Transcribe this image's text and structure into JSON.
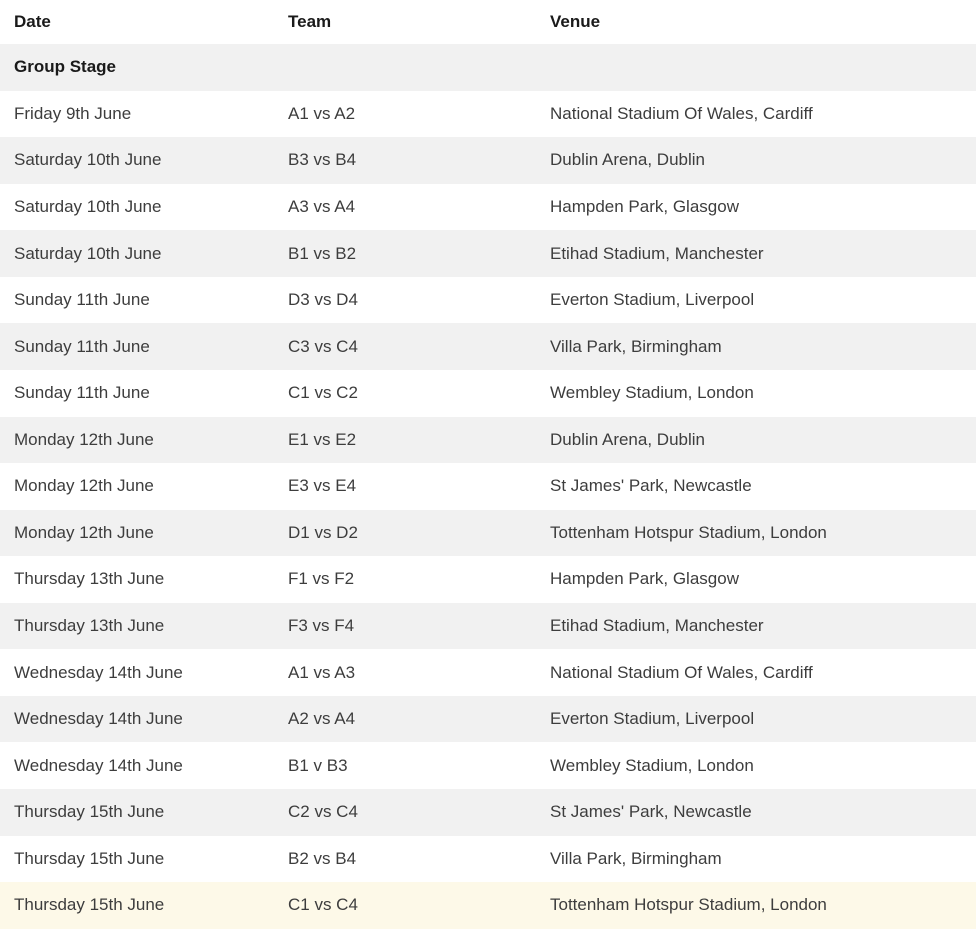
{
  "table": {
    "columns": [
      {
        "key": "date",
        "label": "Date"
      },
      {
        "key": "team",
        "label": "Team"
      },
      {
        "key": "venue",
        "label": "Venue"
      }
    ],
    "section_header": "Group Stage",
    "rows": [
      {
        "date": "Friday 9th June",
        "team": "A1 vs A2",
        "venue": "National Stadium Of Wales, Cardiff",
        "highlighted": false
      },
      {
        "date": "Saturday 10th June",
        "team": "B3 vs B4",
        "venue": "Dublin Arena, Dublin",
        "highlighted": false
      },
      {
        "date": "Saturday 10th June",
        "team": "A3 vs A4",
        "venue": "Hampden Park, Glasgow",
        "highlighted": false
      },
      {
        "date": "Saturday 10th June",
        "team": "B1 vs B2",
        "venue": "Etihad Stadium, Manchester",
        "highlighted": false
      },
      {
        "date": "Sunday 11th June",
        "team": "D3 vs D4",
        "venue": "Everton Stadium, Liverpool",
        "highlighted": false
      },
      {
        "date": "Sunday 11th June",
        "team": "C3 vs C4",
        "venue": "Villa Park, Birmingham",
        "highlighted": false
      },
      {
        "date": "Sunday 11th June",
        "team": "C1 vs C2",
        "venue": "Wembley Stadium, London",
        "highlighted": false
      },
      {
        "date": "Monday 12th June",
        "team": "E1 vs E2",
        "venue": "Dublin Arena, Dublin",
        "highlighted": false
      },
      {
        "date": "Monday 12th June",
        "team": "E3 vs E4",
        "venue": "St James' Park, Newcastle",
        "highlighted": false
      },
      {
        "date": "Monday 12th June",
        "team": "D1 vs D2",
        "venue": "Tottenham Hotspur Stadium, London",
        "highlighted": false
      },
      {
        "date": "Thursday 13th June",
        "team": "F1 vs F2",
        "venue": "Hampden Park, Glasgow",
        "highlighted": false
      },
      {
        "date": "Thursday 13th June",
        "team": "F3 vs F4",
        "venue": "Etihad Stadium, Manchester",
        "highlighted": false
      },
      {
        "date": "Wednesday 14th June",
        "team": "A1 vs A3",
        "venue": "National Stadium Of Wales, Cardiff",
        "highlighted": false
      },
      {
        "date": "Wednesday 14th June",
        "team": "A2 vs A4",
        "venue": "Everton Stadium, Liverpool",
        "highlighted": false
      },
      {
        "date": "Wednesday 14th June",
        "team": "B1 v B3",
        "venue": "Wembley Stadium, London",
        "highlighted": false
      },
      {
        "date": "Thursday 15th June",
        "team": "C2 vs C4",
        "venue": "St James' Park, Newcastle",
        "highlighted": false
      },
      {
        "date": "Thursday 15th June",
        "team": "B2 vs B4",
        "venue": "Villa Park, Birmingham",
        "highlighted": false
      },
      {
        "date": "Thursday 15th June",
        "team": "C1 vs C4",
        "venue": "Tottenham Hotspur Stadium, London",
        "highlighted": true
      }
    ],
    "colors": {
      "row_alt_background": "#f1f1f1",
      "highlight_background": "#fdf9e8",
      "header_text": "#1a1a1a",
      "row_text": "#3d3d3d"
    }
  }
}
